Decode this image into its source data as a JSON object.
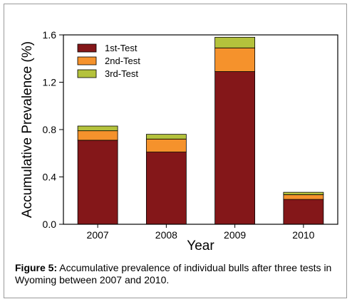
{
  "figure": {
    "caption_label": "Figure 5:",
    "caption_text": "Accumulative prevalence of individual bulls after three tests in Wyoming between 2007 and 2010."
  },
  "chart_data": {
    "type": "bar",
    "stacked": true,
    "categories": [
      "2007",
      "2008",
      "2009",
      "2010"
    ],
    "series": [
      {
        "name": "1st-Test",
        "color": "#841719",
        "values": [
          0.71,
          0.61,
          1.29,
          0.21
        ]
      },
      {
        "name": "2nd-Test",
        "color": "#f5922c",
        "values": [
          0.08,
          0.11,
          0.2,
          0.04
        ]
      },
      {
        "name": "3rd-Test",
        "color": "#b4c23c",
        "values": [
          0.04,
          0.04,
          0.09,
          0.02
        ]
      }
    ],
    "xlabel": "Year",
    "ylabel": "Accumulative Prevalence (%)",
    "ylim": [
      0,
      1.6
    ],
    "yticks": [
      0.0,
      0.4,
      0.8,
      1.2,
      1.6
    ],
    "ytick_labels": [
      "0.0",
      "0.4",
      "0.8",
      "1.2",
      "1.6"
    ],
    "grid": false,
    "legend_position": "top-left"
  }
}
